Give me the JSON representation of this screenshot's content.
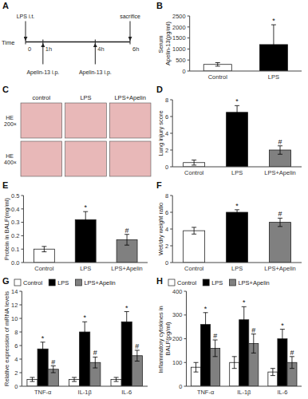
{
  "chart_data": [
    {
      "type": "timeline",
      "title": "A",
      "xlabel": "Time",
      "xlim": [
        0,
        6
      ],
      "xticks": [
        0,
        {
          "value": 1,
          "label": "1h"
        },
        {
          "value": 4,
          "label": "4h"
        },
        {
          "value": 6,
          "label": "6h"
        }
      ],
      "annotations": [
        {
          "text": "LPS i.t.",
          "x": 0,
          "position": "above"
        },
        {
          "text": "sacrifice",
          "x": 6,
          "position": "above"
        },
        {
          "text": "Apelin-13 i.p.",
          "x": 1,
          "position": "below"
        },
        {
          "text": "Apelin-13 i.p.",
          "x": 4,
          "position": "below"
        }
      ]
    },
    {
      "type": "bar",
      "title": "B",
      "categories": [
        "Control",
        "LPS"
      ],
      "values": [
        300,
        1200
      ],
      "errors": [
        80,
        900
      ],
      "colors": [
        "white",
        "black"
      ],
      "ylabel": "Serum Apelin-13(pg/ml)",
      "ylim": [
        0,
        2500
      ],
      "yticks": [
        0,
        500,
        1000,
        1500,
        2000,
        2500
      ],
      "significance": [
        null,
        "*"
      ]
    },
    {
      "type": "image_grid",
      "title": "C",
      "categories": [
        "control",
        "LPS",
        "LPS+Apelin"
      ],
      "rows": [
        "HE\n200×",
        "HE\n400×"
      ]
    },
    {
      "type": "bar",
      "title": "D",
      "categories": [
        "Control",
        "LPS",
        "LPS+Apelin"
      ],
      "values": [
        0.5,
        6.5,
        2.0
      ],
      "errors": [
        0.3,
        0.8,
        0.5
      ],
      "colors": [
        "white",
        "black",
        "#808080"
      ],
      "ylabel": "Lung injury score",
      "ylim": [
        0,
        8
      ],
      "yticks": [
        0,
        2,
        4,
        6,
        8
      ],
      "significance": [
        null,
        "*",
        "#"
      ]
    },
    {
      "type": "bar",
      "title": "E",
      "categories": [
        "Control",
        "LPS",
        "LPS+Apelin"
      ],
      "values": [
        0.1,
        0.32,
        0.17
      ],
      "errors": [
        0.02,
        0.06,
        0.04
      ],
      "colors": [
        "white",
        "black",
        "#808080"
      ],
      "ylabel": "Protein in BALF(mg/ml)",
      "ylim": [
        0,
        0.5
      ],
      "yticks": [
        {
          "value": 0,
          "label": "0.0"
        },
        0.1,
        0.2,
        0.3,
        0.4,
        0.5
      ],
      "significance": [
        null,
        "*",
        "#"
      ]
    },
    {
      "type": "bar",
      "title": "F",
      "categories": [
        "Control",
        "LPS",
        "LPS+Apelin"
      ],
      "values": [
        3.8,
        6.0,
        4.8
      ],
      "errors": [
        0.4,
        0.3,
        0.5
      ],
      "colors": [
        "white",
        "black",
        "#808080"
      ],
      "ylabel": "Wet/dry weight ratio",
      "ylim": [
        0,
        8
      ],
      "yticks": [
        0,
        2,
        4,
        6,
        8
      ],
      "significance": [
        null,
        "*",
        "#"
      ]
    },
    {
      "type": "bar",
      "title": "G",
      "categories": [
        "TNF-α",
        "IL-1β",
        "IL-6"
      ],
      "series": [
        {
          "name": "Control",
          "color": "white",
          "values": [
            1.0,
            1.0,
            1.0
          ],
          "errors": [
            0.3,
            0.3,
            0.3
          ]
        },
        {
          "name": "LPS",
          "color": "black",
          "values": [
            5.5,
            8.0,
            9.5
          ],
          "errors": [
            1.0,
            1.5,
            1.5
          ],
          "significance": [
            "*",
            "*",
            "*"
          ]
        },
        {
          "name": "LPS+Apelin",
          "color": "#808080",
          "values": [
            2.5,
            3.5,
            4.5
          ],
          "errors": [
            0.5,
            0.8,
            0.8
          ],
          "significance": [
            "#",
            "#",
            "#"
          ]
        }
      ],
      "ylabel": "Relative expression of mRNA levels",
      "ylim": [
        0,
        14
      ],
      "yticks": [
        0,
        2,
        4,
        6,
        8,
        10,
        12,
        14
      ],
      "legend": "upper left"
    },
    {
      "type": "bar",
      "title": "H",
      "categories": [
        "TNF-α",
        "IL-1β",
        "IL-6"
      ],
      "series": [
        {
          "name": "Control",
          "color": "white",
          "values": [
            80,
            100,
            60
          ],
          "errors": [
            20,
            25,
            15
          ]
        },
        {
          "name": "LPS",
          "color": "black",
          "values": [
            260,
            280,
            200
          ],
          "errors": [
            50,
            55,
            40
          ],
          "significance": [
            "*",
            "*",
            "*"
          ]
        },
        {
          "name": "LPS+Apelin",
          "color": "#808080",
          "values": [
            160,
            180,
            100
          ],
          "errors": [
            35,
            40,
            25
          ],
          "significance": [
            "#",
            "#",
            "#"
          ]
        }
      ],
      "ylabel": "Inflammatory cytokines in BALF(pg/ml)",
      "ylim": [
        0,
        400
      ],
      "yticks": [
        0,
        100,
        200,
        300,
        400
      ],
      "legend": "upper left"
    }
  ]
}
